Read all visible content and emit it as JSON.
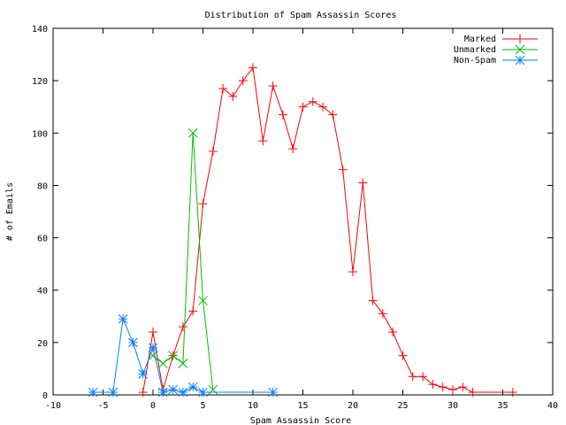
{
  "chart_data": {
    "type": "line",
    "title": "Distribution of Spam Assassin Scores",
    "xlabel": "Spam Assassin Score",
    "ylabel": "# of Emails",
    "xlim": [
      -10,
      40
    ],
    "ylim": [
      0,
      140
    ],
    "xticks": [
      -10,
      -5,
      0,
      5,
      10,
      15,
      20,
      25,
      30,
      35,
      40
    ],
    "yticks": [
      0,
      20,
      40,
      60,
      80,
      100,
      120,
      140
    ],
    "grid": false,
    "legend": "top-right",
    "series": [
      {
        "name": "Marked",
        "color": "#ff0000",
        "marker": "plus",
        "points": [
          [
            -1,
            1
          ],
          [
            0,
            24
          ],
          [
            1,
            2
          ],
          [
            2,
            15
          ],
          [
            3,
            26
          ],
          [
            4,
            32
          ],
          [
            5,
            73
          ],
          [
            6,
            93
          ],
          [
            7,
            117
          ],
          [
            8,
            114
          ],
          [
            9,
            120
          ],
          [
            10,
            125
          ],
          [
            11,
            97
          ],
          [
            12,
            118
          ],
          [
            13,
            107
          ],
          [
            14,
            94
          ],
          [
            15,
            110
          ],
          [
            16,
            112
          ],
          [
            17,
            110
          ],
          [
            18,
            107
          ],
          [
            19,
            86
          ],
          [
            20,
            47
          ],
          [
            21,
            81
          ],
          [
            22,
            36
          ],
          [
            23,
            31
          ],
          [
            24,
            24
          ],
          [
            25,
            15
          ],
          [
            26,
            7
          ],
          [
            27,
            7
          ],
          [
            28,
            4
          ],
          [
            29,
            3
          ],
          [
            30,
            2
          ],
          [
            31,
            3
          ],
          [
            32,
            1
          ],
          [
            36,
            1
          ]
        ]
      },
      {
        "name": "Unmarked",
        "color": "#00c000",
        "marker": "cross",
        "points": [
          [
            0,
            15
          ],
          [
            1,
            12
          ],
          [
            2,
            15
          ],
          [
            3,
            12
          ],
          [
            4,
            100
          ],
          [
            5,
            36
          ],
          [
            6,
            2
          ]
        ]
      },
      {
        "name": "Non-Spam",
        "color": "#0080ff",
        "marker": "star",
        "points": [
          [
            -6,
            1
          ],
          [
            -4,
            1
          ],
          [
            -3,
            29
          ],
          [
            -2,
            20
          ],
          [
            -1,
            8
          ],
          [
            0,
            18
          ],
          [
            1,
            1
          ],
          [
            2,
            2
          ],
          [
            3,
            1
          ],
          [
            4,
            3
          ],
          [
            5,
            1
          ],
          [
            12,
            1
          ]
        ]
      }
    ]
  }
}
